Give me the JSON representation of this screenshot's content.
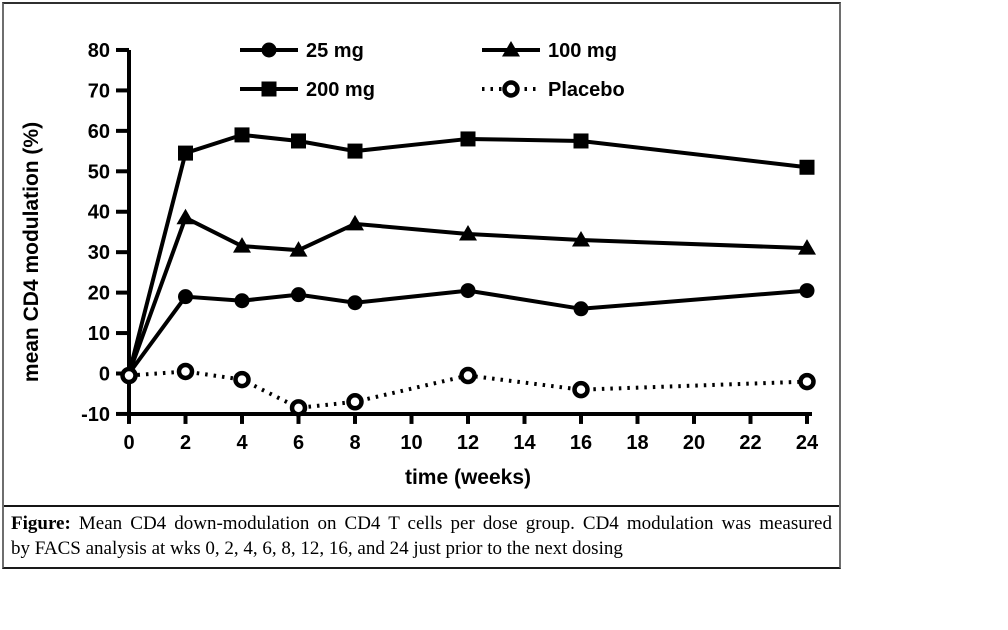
{
  "figure": {
    "caption_label": "Figure:",
    "caption_line1_rest": " Mean CD4 down-modulation on CD4 T cells per dose group. CD4 modulation was measured",
    "caption_line2": "by FACS analysis at wks 0, 2, 4, 6, 8, 12, 16, and 24 just prior to the next dosing"
  },
  "chart_data": {
    "type": "line",
    "title": "",
    "xlabel": "time (weeks)",
    "ylabel": "mean CD4 modulation (%)",
    "x": [
      0,
      2,
      4,
      6,
      8,
      12,
      16,
      24
    ],
    "xticks": [
      0,
      2,
      4,
      6,
      8,
      10,
      12,
      14,
      16,
      18,
      20,
      22,
      24
    ],
    "yticks": [
      80,
      70,
      60,
      50,
      40,
      30,
      20,
      10,
      0,
      -10
    ],
    "xlim": [
      0,
      24
    ],
    "ylim": [
      -10,
      80
    ],
    "grid": false,
    "legend_position": "top-inside-two-columns",
    "series": [
      {
        "name": "25 mg",
        "marker": "filled-circle",
        "line": "solid",
        "values": [
          0,
          19,
          18,
          19.5,
          17.5,
          20.5,
          16,
          20.5
        ]
      },
      {
        "name": "100 mg",
        "marker": "filled-triangle",
        "line": "solid",
        "values": [
          0,
          38.5,
          31.5,
          30.5,
          37,
          34.5,
          33,
          31
        ]
      },
      {
        "name": "200 mg",
        "marker": "filled-square",
        "line": "solid",
        "values": [
          0,
          54.5,
          59,
          57.5,
          55,
          58,
          57.5,
          51
        ]
      },
      {
        "name": "Placebo",
        "marker": "open-circle",
        "line": "dotted",
        "values": [
          -0.5,
          0.5,
          -1.5,
          -8.5,
          -7,
          -0.5,
          -4,
          -2
        ]
      }
    ],
    "colors": {
      "series": "#000000",
      "background": "#ffffff"
    }
  }
}
